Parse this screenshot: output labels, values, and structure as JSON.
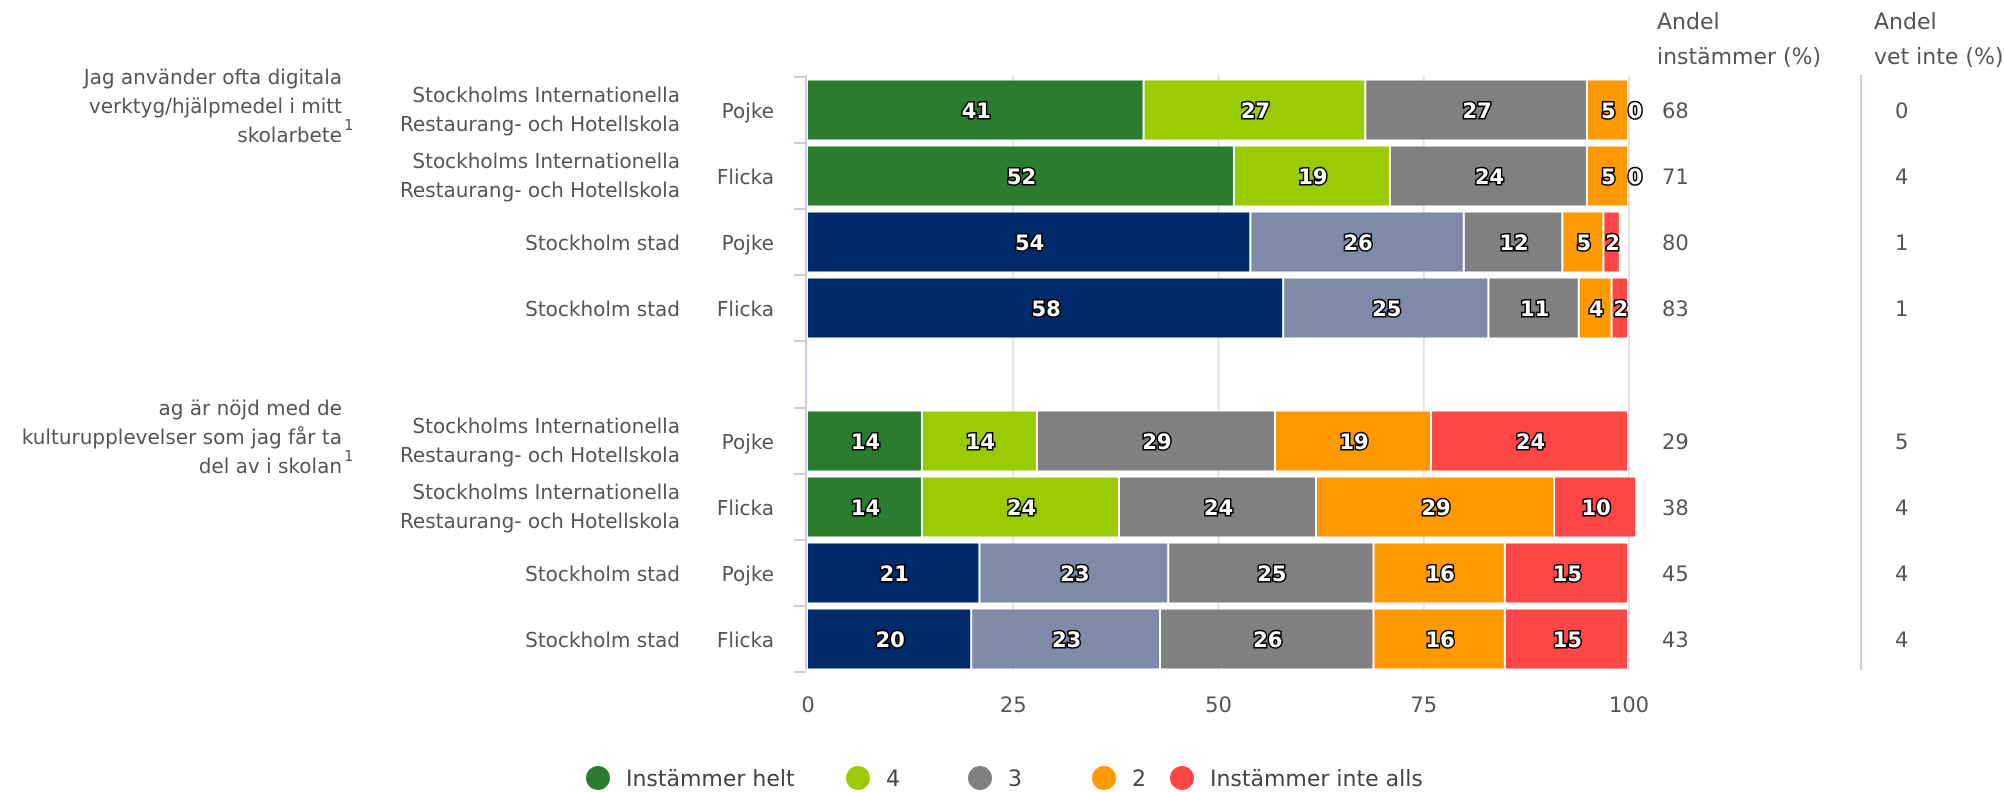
{
  "colors": {
    "green_dark": "#2a7c2e",
    "green_light": "#99cc00",
    "gray": "#808080",
    "orange": "#ff9900",
    "red": "#ff4646",
    "navy": "#002a6a",
    "slate": "#7f8aa8",
    "grid": "#e3e3ea",
    "axis": "#c9cde3"
  },
  "legend": {
    "items": [
      {
        "label": "Instämmer helt",
        "color": "#2a7c2e"
      },
      {
        "label": "4",
        "color": "#99cc00"
      },
      {
        "label": "3",
        "color": "#808080"
      },
      {
        "label": "2",
        "color": "#ff9900"
      },
      {
        "label": "Instämmer inte alls",
        "color": "#ff4646"
      }
    ]
  },
  "headers": {
    "share_agree": [
      "Andel",
      "instämmer (%)"
    ],
    "share_dont_know": [
      "Andel",
      "vet inte (%)"
    ]
  },
  "chart_data": {
    "type": "bar",
    "orientation": "horizontal",
    "stacked": true,
    "xlim": [
      0,
      100
    ],
    "xticks": [
      "0",
      "25",
      "50",
      "75",
      "100"
    ],
    "series_names": [
      "Instämmer helt",
      "4",
      "3",
      "2",
      "Instämmer inte alls"
    ],
    "groups": [
      {
        "question": [
          "Jag använder ofta digitala",
          "verktyg/hjälpmedel i mitt",
          "skolarbete"
        ],
        "footnote": "1",
        "rows": [
          {
            "school": [
              "Stockholms Internationella",
              "Restaurang- och Hotellskola"
            ],
            "gender": "Pojke",
            "palette": "school",
            "values": [
              41,
              27,
              27,
              5,
              0
            ],
            "andel_instammer": "68",
            "andel_vet_inte": "0"
          },
          {
            "school": [
              "Stockholms Internationella",
              "Restaurang- och Hotellskola"
            ],
            "gender": "Flicka",
            "palette": "school",
            "values": [
              52,
              19,
              24,
              5,
              0
            ],
            "andel_instammer": "71",
            "andel_vet_inte": "4"
          },
          {
            "school": [
              "Stockholm stad"
            ],
            "gender": "Pojke",
            "palette": "city",
            "values": [
              54,
              26,
              12,
              5,
              2
            ],
            "andel_instammer": "80",
            "andel_vet_inte": "1"
          },
          {
            "school": [
              "Stockholm stad"
            ],
            "gender": "Flicka",
            "palette": "city",
            "values": [
              58,
              25,
              11,
              4,
              2
            ],
            "andel_instammer": "83",
            "andel_vet_inte": "1"
          }
        ]
      },
      {
        "question": [
          "ag är nöjd med de",
          "kulturupplevelser som jag får ta",
          "del av i skolan"
        ],
        "footnote": "1",
        "rows": [
          {
            "school": [
              "Stockholms Internationella",
              "Restaurang- och Hotellskola"
            ],
            "gender": "Pojke",
            "palette": "school",
            "values": [
              14,
              14,
              29,
              19,
              24
            ],
            "andel_instammer": "29",
            "andel_vet_inte": "5"
          },
          {
            "school": [
              "Stockholms Internationella",
              "Restaurang- och Hotellskola"
            ],
            "gender": "Flicka",
            "palette": "school",
            "values": [
              14,
              24,
              24,
              29,
              10
            ],
            "andel_instammer": "38",
            "andel_vet_inte": "4"
          },
          {
            "school": [
              "Stockholm stad"
            ],
            "gender": "Pojke",
            "palette": "city",
            "values": [
              21,
              23,
              25,
              16,
              15
            ],
            "andel_instammer": "45",
            "andel_vet_inte": "4"
          },
          {
            "school": [
              "Stockholm stad"
            ],
            "gender": "Flicka",
            "palette": "city",
            "values": [
              20,
              23,
              26,
              16,
              15
            ],
            "andel_instammer": "43",
            "andel_vet_inte": "4"
          }
        ]
      }
    ]
  }
}
